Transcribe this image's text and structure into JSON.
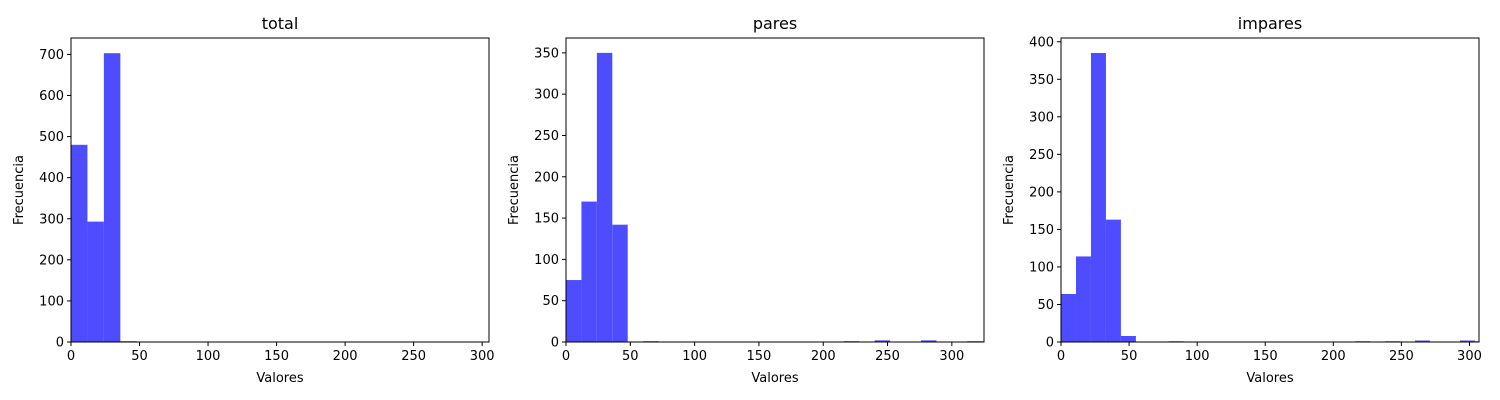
{
  "chart_data": [
    {
      "type": "bar",
      "title": "total",
      "xlabel": "Valores",
      "ylabel": "Frecuencia",
      "xlim": [
        0,
        305
      ],
      "ylim": [
        0,
        740
      ],
      "xticks": [
        0,
        50,
        100,
        150,
        200,
        250,
        300
      ],
      "yticks": [
        0,
        100,
        200,
        300,
        400,
        500,
        600,
        700
      ],
      "bin_width": 12,
      "bars": [
        {
          "x0": 0,
          "x1": 12,
          "value": 480
        },
        {
          "x0": 12,
          "x1": 24,
          "value": 293
        },
        {
          "x0": 24,
          "x1": 36,
          "value": 703
        },
        {
          "x0": 36,
          "x1": 48,
          "value": 2
        },
        {
          "x0": 48,
          "x1": 60,
          "value": 0
        },
        {
          "x0": 60,
          "x1": 72,
          "value": 1
        },
        {
          "x0": 216,
          "x1": 228,
          "value": 1
        },
        {
          "x0": 228,
          "x1": 240,
          "value": 1
        },
        {
          "x0": 240,
          "x1": 252,
          "value": 1
        },
        {
          "x0": 264,
          "x1": 276,
          "value": 1
        },
        {
          "x0": 288,
          "x1": 300,
          "value": 1
        },
        {
          "x0": 300,
          "x1": 305,
          "value": 1
        }
      ],
      "color": "#4d4dff"
    },
    {
      "type": "bar",
      "title": "pares",
      "xlabel": "Valores",
      "ylabel": "Frecuencia",
      "xlim": [
        0,
        325
      ],
      "ylim": [
        0,
        368
      ],
      "xticks": [
        0,
        50,
        100,
        150,
        200,
        250,
        300
      ],
      "yticks": [
        0,
        50,
        100,
        150,
        200,
        250,
        300,
        350
      ],
      "bin_width": 12,
      "bars": [
        {
          "x0": 0,
          "x1": 12,
          "value": 75
        },
        {
          "x0": 12,
          "x1": 24,
          "value": 170
        },
        {
          "x0": 24,
          "x1": 36,
          "value": 350
        },
        {
          "x0": 36,
          "x1": 48,
          "value": 142
        },
        {
          "x0": 60,
          "x1": 72,
          "value": 1
        },
        {
          "x0": 216,
          "x1": 228,
          "value": 1
        },
        {
          "x0": 240,
          "x1": 252,
          "value": 2
        },
        {
          "x0": 276,
          "x1": 288,
          "value": 2
        },
        {
          "x0": 312,
          "x1": 324,
          "value": 1
        }
      ],
      "color": "#4d4dff"
    },
    {
      "type": "bar",
      "title": "impares",
      "xlabel": "Valores",
      "ylabel": "Frecuencia",
      "xlim": [
        0,
        307
      ],
      "ylim": [
        0,
        405
      ],
      "xticks": [
        0,
        50,
        100,
        150,
        200,
        250,
        300
      ],
      "yticks": [
        0,
        50,
        100,
        150,
        200,
        250,
        300,
        350,
        400
      ],
      "bin_width": 11,
      "bars": [
        {
          "x0": 0,
          "x1": 11,
          "value": 64
        },
        {
          "x0": 11,
          "x1": 22,
          "value": 114
        },
        {
          "x0": 22,
          "x1": 33,
          "value": 385
        },
        {
          "x0": 33,
          "x1": 44,
          "value": 163
        },
        {
          "x0": 44,
          "x1": 55,
          "value": 8
        },
        {
          "x0": 79,
          "x1": 90,
          "value": 1
        },
        {
          "x0": 216,
          "x1": 227,
          "value": 1
        },
        {
          "x0": 238,
          "x1": 249,
          "value": 1
        },
        {
          "x0": 260,
          "x1": 271,
          "value": 2
        },
        {
          "x0": 293,
          "x1": 304,
          "value": 2
        },
        {
          "x0": 304,
          "x1": 307,
          "value": 1
        }
      ],
      "color": "#4d4dff"
    }
  ]
}
